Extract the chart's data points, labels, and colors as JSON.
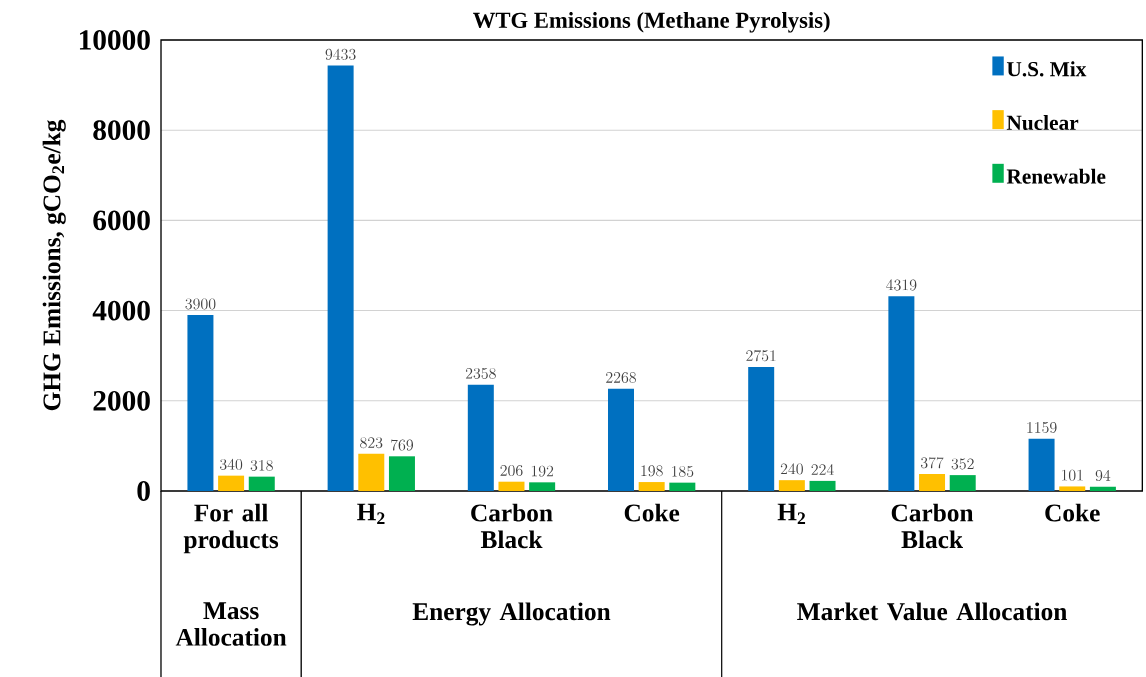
{
  "chart_data": {
    "type": "bar",
    "title": "WTG Emissions (Methane Pyrolysis)",
    "ylabel": "GHG Emissions, gCO$_{2}$e/kg",
    "categories": [
      "For all products",
      "H$_{2}$",
      "Carbon Black",
      "Coke",
      "H$_{2}$",
      "Carbon Black",
      "Coke"
    ],
    "series": [
      {
        "name": "U.S. Mix",
        "color": "#0070c0",
        "values": [
          3900,
          9433,
          2358,
          2268,
          2751,
          4319,
          1159
        ]
      },
      {
        "name": "Nuclear",
        "color": "#ffc000",
        "values": [
          340,
          823,
          206,
          198,
          240,
          377,
          101
        ]
      },
      {
        "name": "Renewable",
        "color": "#00b050",
        "values": [
          318,
          769,
          192,
          185,
          224,
          352,
          94
        ]
      }
    ],
    "ylim": [
      0,
      10000
    ],
    "yticks": [
      0,
      2000,
      4000,
      6000,
      8000,
      10000
    ],
    "grid": "y",
    "legend": "top right",
    "data_labels": true,
    "annotations": [
      "Mass Allocation",
      "Energy Allocation",
      "Market Value Allocation"
    ]
  }
}
